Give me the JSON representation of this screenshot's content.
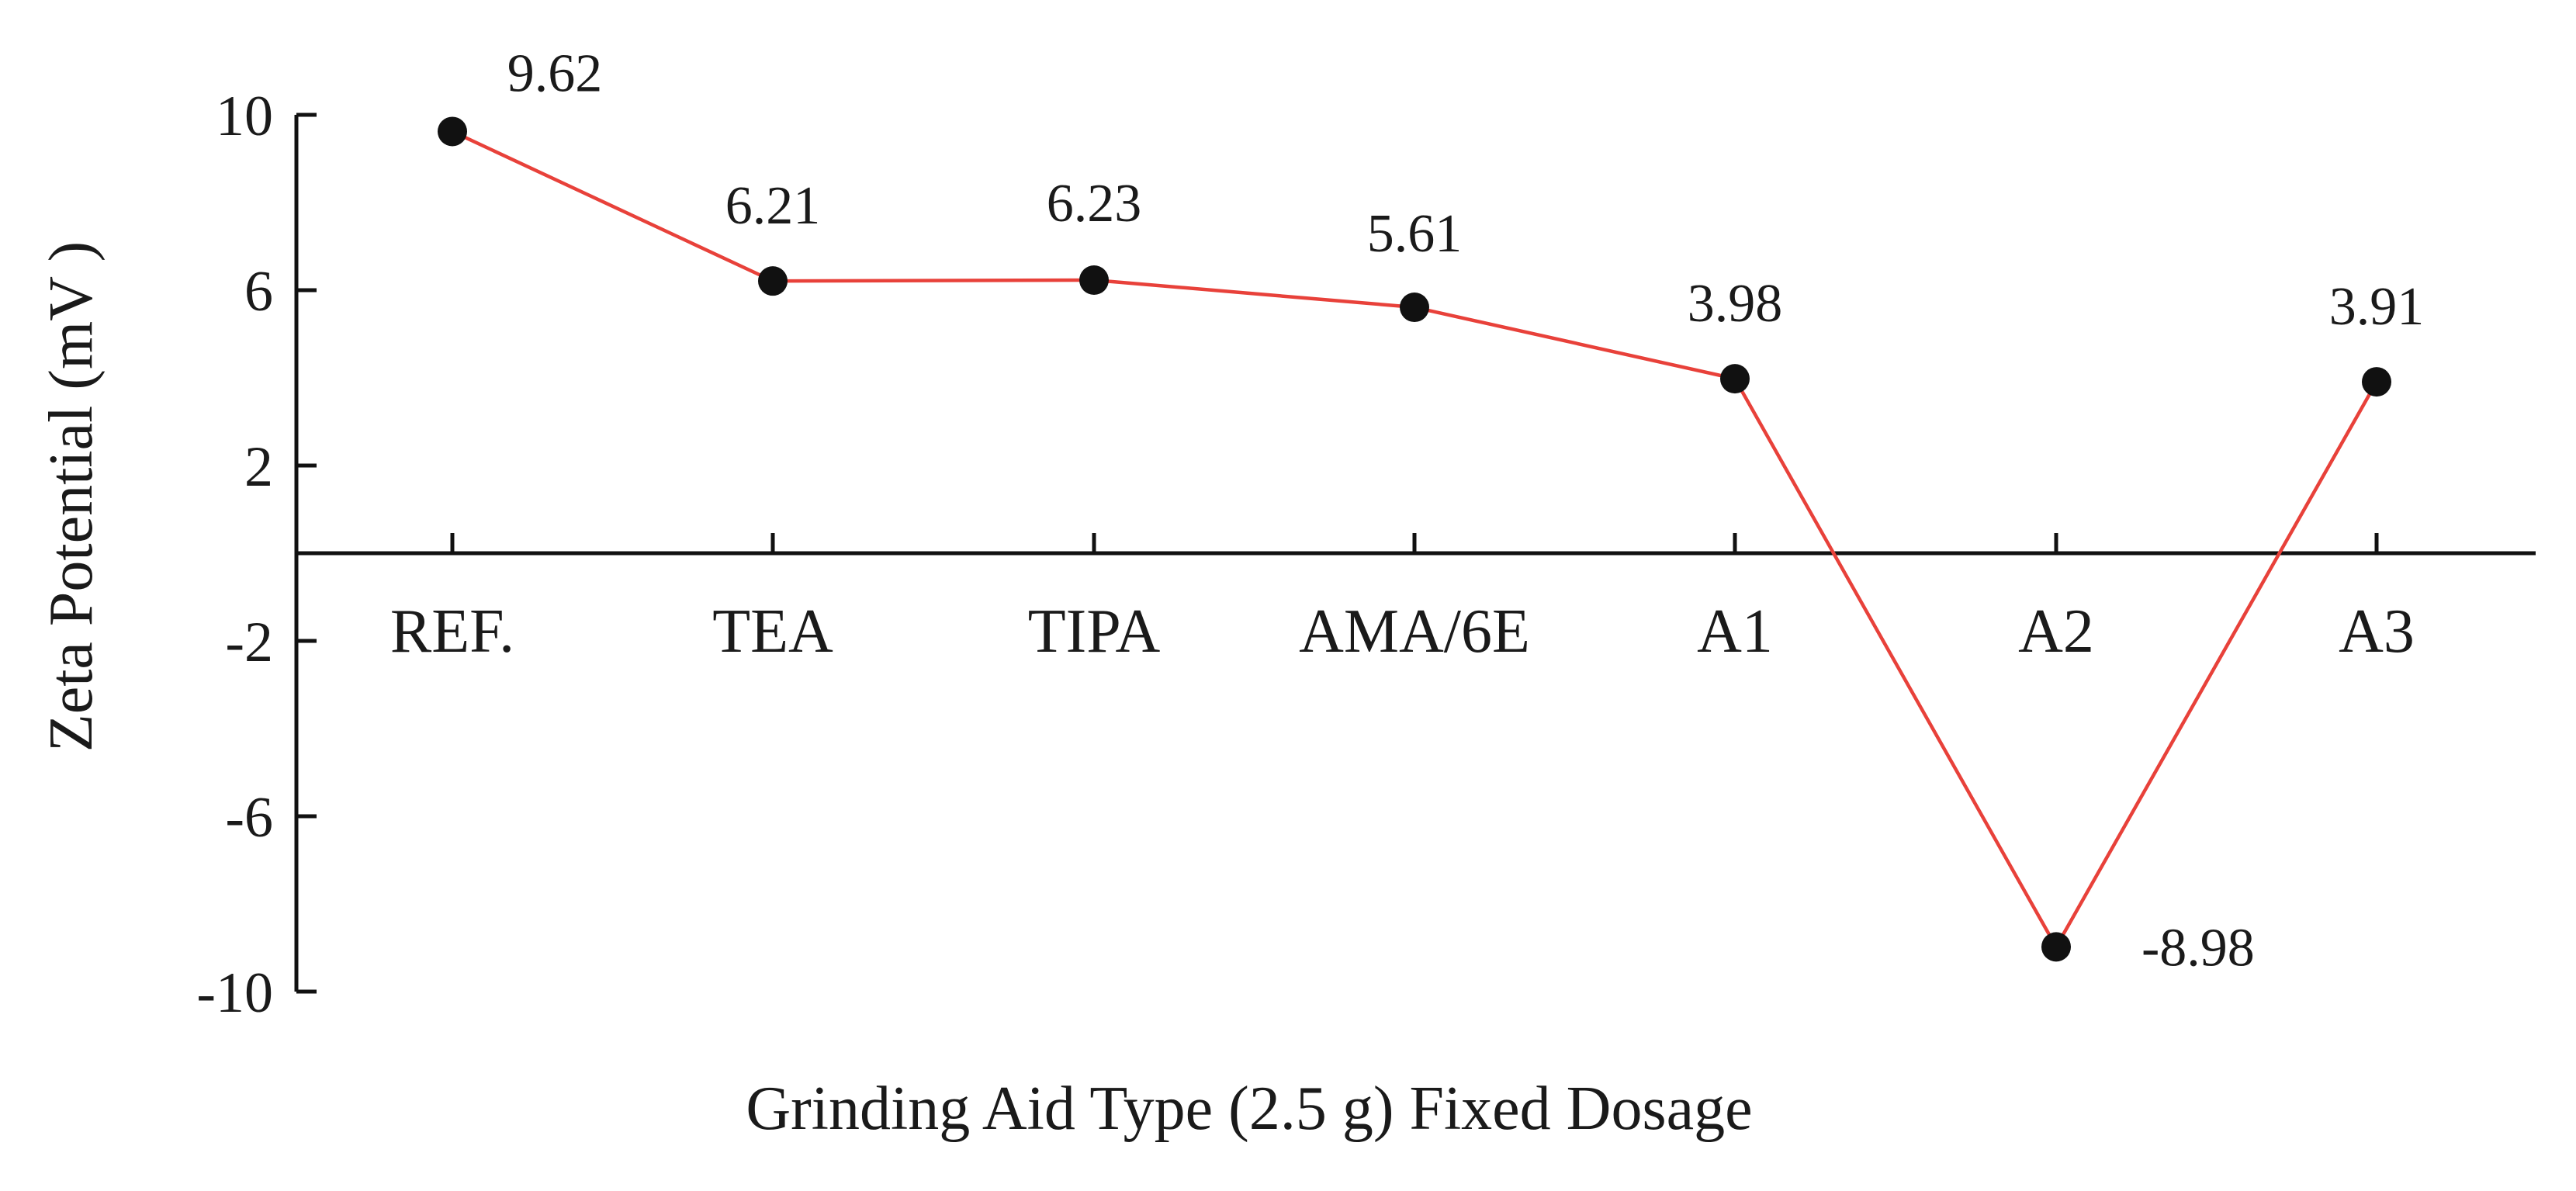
{
  "chart_data": {
    "type": "line",
    "title": "",
    "xlabel": "Grinding  Aid Type (2.5 g) Fixed Dosage",
    "ylabel": "Zeta Potential  (mV )",
    "categories": [
      "REF.",
      "TEA",
      "TIPA",
      "AMA/6E",
      "A1",
      "A2",
      "A3"
    ],
    "series": [
      {
        "name": "Zeta Potential",
        "values": [
          9.62,
          6.21,
          6.23,
          5.61,
          3.98,
          -8.98,
          3.91
        ]
      }
    ],
    "data_labels": [
      "9.62",
      "6.21",
      "6.23",
      "5.61",
      "3.98",
      "-8.98",
      "3.91"
    ],
    "y_ticks": [
      10,
      6,
      2,
      -2,
      -6,
      -10
    ],
    "y_tick_labels": [
      "10",
      "6",
      "2",
      "-2",
      "-6",
      "-10"
    ],
    "ylim": [
      -10,
      10
    ],
    "grid": false,
    "legend": "none",
    "line_color": "#e8413a",
    "marker_color": "#111111",
    "axis_color": "#111111"
  }
}
